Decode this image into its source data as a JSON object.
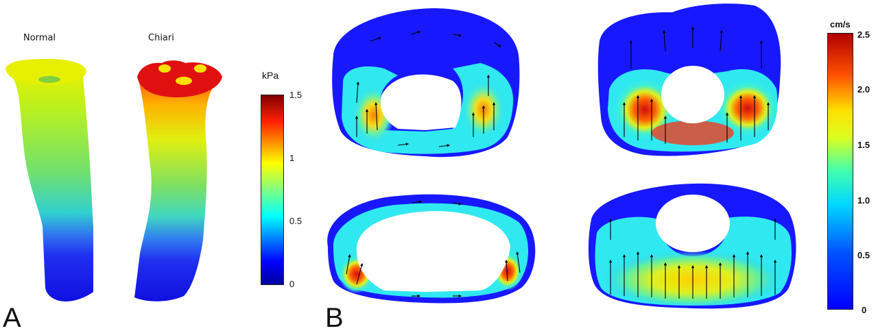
{
  "panelA": {
    "label": "A",
    "models": [
      {
        "name": "Normal",
        "top_pressure_kpa": 1.0
      },
      {
        "name": "Chiari",
        "top_pressure_kpa": 1.5
      }
    ],
    "colorbar": {
      "unit": "kPa",
      "ticks": [
        "1.5",
        "1",
        "0.5",
        "0"
      ],
      "min": 0,
      "max": 1.5
    }
  },
  "panelB": {
    "label": "B",
    "colorbar": {
      "unit": "cm/s",
      "ticks": [
        "2.5",
        "2.0",
        "1.5",
        "1.0",
        "0.5",
        "0"
      ],
      "min": 0,
      "max": 2.5
    },
    "cross_sections": [
      {
        "name": "normal-upper",
        "peak_velocity_cm_s": 1.8
      },
      {
        "name": "chiari-upper",
        "peak_velocity_cm_s": 2.5
      },
      {
        "name": "normal-lower",
        "peak_velocity_cm_s": 2.0
      },
      {
        "name": "chiari-lower",
        "peak_velocity_cm_s": 1.6
      }
    ]
  },
  "colors": {
    "jet": [
      "#0000a0",
      "#0000ff",
      "#00a0ff",
      "#00ffff",
      "#70ff80",
      "#ffff00",
      "#ff9000",
      "#ff0000",
      "#800000"
    ],
    "arrow": "#000000"
  }
}
